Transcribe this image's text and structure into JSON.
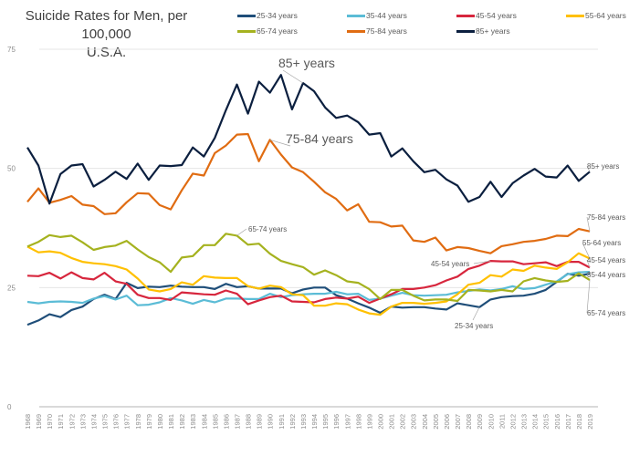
{
  "chart_data": {
    "type": "line",
    "title": "Suicide Rates for Men, per 100,000",
    "subtitle": "U.S.A.",
    "xlabel": "",
    "ylabel": "",
    "ylim": [
      0,
      75
    ],
    "yticks": [
      0,
      25,
      50,
      75
    ],
    "grid": true,
    "legend_position": "top",
    "x": [
      1968,
      1969,
      1970,
      1971,
      1972,
      1973,
      1974,
      1975,
      1976,
      1977,
      1978,
      1979,
      1980,
      1981,
      1982,
      1983,
      1984,
      1985,
      1986,
      1987,
      1988,
      1989,
      1990,
      1991,
      1992,
      1993,
      1994,
      1995,
      1996,
      1997,
      1998,
      1999,
      2000,
      2001,
      2002,
      2003,
      2004,
      2005,
      2006,
      2007,
      2008,
      2009,
      2010,
      2011,
      2012,
      2013,
      2014,
      2015,
      2016,
      2017,
      2018,
      2019
    ],
    "series": [
      {
        "name": "25-34 years",
        "color": "#1f4e79",
        "values": [
          17.2,
          18.1,
          19.4,
          18.8,
          20.3,
          21.0,
          22.6,
          23.5,
          22.6,
          26.0,
          24.9,
          25.2,
          25.1,
          25.4,
          25.2,
          25.1,
          25.1,
          24.7,
          25.8,
          25.1,
          25.3,
          24.8,
          24.8,
          24.8,
          23.8,
          24.6,
          25.0,
          25.0,
          23.4,
          22.7,
          21.7,
          20.8,
          19.7,
          21.0,
          20.8,
          20.9,
          20.9,
          20.6,
          20.4,
          21.7,
          21.3,
          20.9,
          22.5,
          23.0,
          23.2,
          23.3,
          23.7,
          24.5,
          26.2,
          27.9,
          27.5,
          27.9
        ]
      },
      {
        "name": "35-44 years",
        "color": "#5bbcd6",
        "values": [
          22.0,
          21.7,
          22.0,
          22.1,
          22.0,
          21.8,
          22.7,
          23.2,
          22.5,
          23.3,
          21.3,
          21.4,
          21.9,
          22.8,
          22.3,
          21.6,
          22.4,
          21.9,
          22.7,
          22.7,
          22.6,
          22.6,
          23.7,
          23.0,
          23.4,
          23.6,
          23.7,
          23.7,
          24.1,
          23.6,
          23.7,
          22.4,
          22.7,
          23.3,
          23.9,
          23.4,
          23.3,
          23.4,
          23.5,
          24.0,
          24.3,
          24.6,
          24.4,
          24.7,
          25.3,
          24.7,
          24.9,
          25.6,
          26.3,
          27.8,
          28.2,
          28.3
        ]
      },
      {
        "name": "45-54 years",
        "color": "#d7263d",
        "values": [
          27.5,
          27.4,
          28.1,
          26.9,
          28.2,
          27.0,
          26.7,
          28.1,
          26.3,
          25.8,
          23.5,
          22.8,
          22.8,
          22.4,
          24.0,
          23.8,
          23.6,
          23.5,
          24.4,
          23.7,
          21.5,
          22.3,
          23.0,
          23.3,
          22.1,
          22.0,
          21.9,
          22.6,
          22.9,
          22.7,
          23.1,
          21.8,
          22.7,
          23.6,
          24.7,
          24.7,
          25.0,
          25.5,
          26.5,
          27.3,
          28.9,
          29.6,
          30.6,
          30.5,
          30.5,
          29.9,
          30.1,
          30.3,
          29.5,
          30.4,
          30.4,
          29.2
        ]
      },
      {
        "name": "55-64 years",
        "color": "#ffc000",
        "values": [
          33.6,
          32.4,
          32.6,
          32.3,
          31.2,
          30.4,
          30.1,
          29.9,
          29.5,
          28.8,
          26.9,
          24.6,
          24.2,
          24.7,
          26.1,
          25.6,
          27.4,
          27.1,
          27.0,
          27.0,
          25.3,
          24.8,
          25.4,
          25.1,
          23.6,
          23.4,
          21.2,
          21.2,
          21.7,
          21.5,
          20.4,
          19.6,
          19.3,
          21.0,
          21.8,
          21.8,
          21.6,
          21.8,
          22.1,
          23.6,
          25.6,
          26.0,
          27.6,
          27.3,
          28.8,
          28.5,
          29.6,
          29.2,
          28.9,
          30.3,
          32.2,
          31.1
        ]
      },
      {
        "name": "65-74 years",
        "color": "#a5b21f",
        "values": [
          33.6,
          34.6,
          36.0,
          35.6,
          35.9,
          34.5,
          32.9,
          33.5,
          33.8,
          34.8,
          33.0,
          31.4,
          30.3,
          28.3,
          31.3,
          31.6,
          33.9,
          33.9,
          36.3,
          35.9,
          34.0,
          34.2,
          32.1,
          30.6,
          29.9,
          29.3,
          27.7,
          28.6,
          27.6,
          26.3,
          26.0,
          24.7,
          22.6,
          24.5,
          24.5,
          23.3,
          22.3,
          22.5,
          22.5,
          22.2,
          24.5,
          24.4,
          24.2,
          24.5,
          24.2,
          26.3,
          27.0,
          26.5,
          26.2,
          26.4,
          28.0,
          26.6
        ]
      },
      {
        "name": "75-84 years",
        "color": "#e06c12",
        "values": [
          43.0,
          45.8,
          42.8,
          43.4,
          44.2,
          42.4,
          42.1,
          40.4,
          40.6,
          42.9,
          44.8,
          44.7,
          42.3,
          41.4,
          45.4,
          48.9,
          48.5,
          53.2,
          54.8,
          57.1,
          57.2,
          51.5,
          56.0,
          52.9,
          50.2,
          49.2,
          47.2,
          45.0,
          43.6,
          41.2,
          42.5,
          38.8,
          38.7,
          37.8,
          38.0,
          34.9,
          34.6,
          35.5,
          32.8,
          33.5,
          33.3,
          32.7,
          32.2,
          33.7,
          34.1,
          34.6,
          34.8,
          35.2,
          35.9,
          35.8,
          37.3,
          36.8
        ]
      },
      {
        "name": "85+ years",
        "color": "#0b1f3f",
        "values": [
          54.4,
          50.6,
          42.6,
          48.8,
          50.6,
          50.9,
          46.2,
          47.6,
          49.3,
          47.8,
          51.0,
          47.6,
          50.6,
          50.5,
          50.7,
          54.4,
          52.5,
          56.4,
          62.2,
          67.6,
          61.5,
          68.2,
          65.9,
          69.6,
          62.4,
          67.9,
          66.2,
          62.8,
          60.6,
          61.1,
          59.7,
          57.1,
          57.4,
          52.5,
          54.2,
          51.5,
          49.2,
          49.7,
          47.7,
          46.4,
          43.0,
          44.0,
          47.2,
          44.0,
          46.9,
          48.5,
          49.9,
          48.3,
          48.1,
          50.6,
          47.4,
          49.3
        ]
      }
    ],
    "annotations": [
      {
        "text": "85+ years",
        "series": "85+ years",
        "year": 1993,
        "style": "large"
      },
      {
        "text": "75-84 years",
        "series": "75-84 years",
        "year": 1990,
        "style": "large"
      },
      {
        "text": "65-74 years",
        "series": "65-74 years",
        "year": 1987,
        "style": "small"
      },
      {
        "text": "45-54 years",
        "series": "45-54 years",
        "year": 2010,
        "style": "small"
      },
      {
        "text": "25-34 years",
        "series": "25-34 years",
        "year": 2009,
        "style": "small"
      },
      {
        "text": "85+ years",
        "series": "85+ years",
        "year": 2019,
        "style": "end"
      },
      {
        "text": "75-84 years",
        "series": "75-84 years",
        "year": 2019,
        "style": "end"
      },
      {
        "text": "55-64 years",
        "series": "55-64 years",
        "year": 2019,
        "style": "end"
      },
      {
        "text": "45-54 years",
        "series": "45-54 years",
        "year": 2019,
        "style": "end"
      },
      {
        "text": "35-44 years",
        "series": "35-44 years",
        "year": 2019,
        "style": "end"
      },
      {
        "text": "65-74 years",
        "series": "65-74 years",
        "year": 2019,
        "style": "end"
      }
    ]
  }
}
